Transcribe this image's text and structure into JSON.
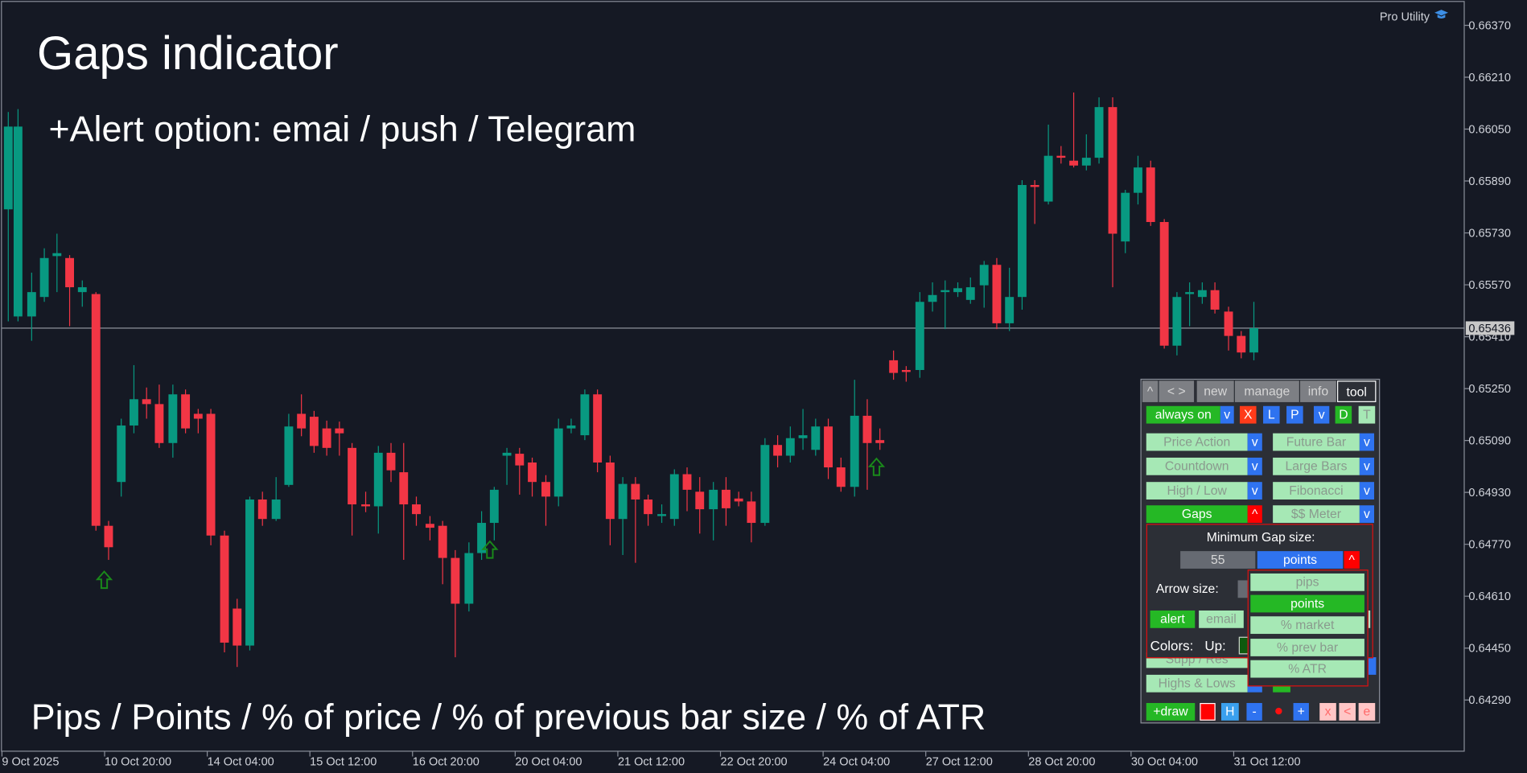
{
  "overlay": {
    "headline": "Gaps indicator",
    "subline": "+Alert option: emai / push / Telegram",
    "footline": "Pips / Points / % of price / % of previous bar size / % of ATR"
  },
  "brand": "Pro Utility",
  "chart": {
    "price_labels": [
      "0.66370",
      "0.66210",
      "0.66050",
      "0.65890",
      "0.65730",
      "0.65570",
      "0.65410",
      "0.65250",
      "0.65090",
      "0.64930",
      "0.64770",
      "0.64610",
      "0.64450",
      "0.64290"
    ],
    "current_price": "0.65436",
    "date_labels": [
      "9 Oct 2025",
      "10 Oct 20:00",
      "14 Oct 04:00",
      "15 Oct 12:00",
      "16 Oct 20:00",
      "20 Oct 04:00",
      "21 Oct 12:00",
      "22 Oct 20:00",
      "24 Oct 04:00",
      "27 Oct 12:00",
      "28 Oct 20:00",
      "30 Oct 04:00",
      "31 Oct 12:00"
    ],
    "colors": {
      "up": "#089981",
      "down": "#f23645",
      "arrow": "#1a8a1a",
      "background": "#151924"
    }
  },
  "panel": {
    "tabs": [
      "^",
      "< >",
      "new",
      "manage",
      "info",
      "tool"
    ],
    "row1": {
      "always_on": "always on",
      "v1": "v",
      "x": "X",
      "l": "L",
      "p": "P",
      "v2": "v",
      "d": "D",
      "t": "T"
    },
    "tools_left": [
      "Price Action",
      "Countdown",
      "High / Low",
      "Gaps"
    ],
    "tools_right": [
      "Future Bar",
      "Large Bars",
      "Fibonacci",
      "$$ Meter"
    ],
    "v": "v",
    "up": "^",
    "lower_left": [
      "Supp / Res",
      "Highs & Lows"
    ],
    "bottom": {
      "draw": "+draw",
      "h": "H",
      "minus": "-",
      "plus": "+",
      "x": "x",
      "lt": "<",
      "e": "e"
    }
  },
  "gaps_settings": {
    "title": "Minimum Gap size:",
    "value": "55",
    "unit": "points",
    "caret": "^",
    "arrow_size_label": "Arrow size:",
    "alert": "alert",
    "email": "email",
    "colors_label": "Colors:",
    "up_label": "Up:"
  },
  "unit_options": [
    "pips",
    "points",
    "% market",
    "% prev bar",
    "% ATR"
  ],
  "selected_unit": "points"
}
